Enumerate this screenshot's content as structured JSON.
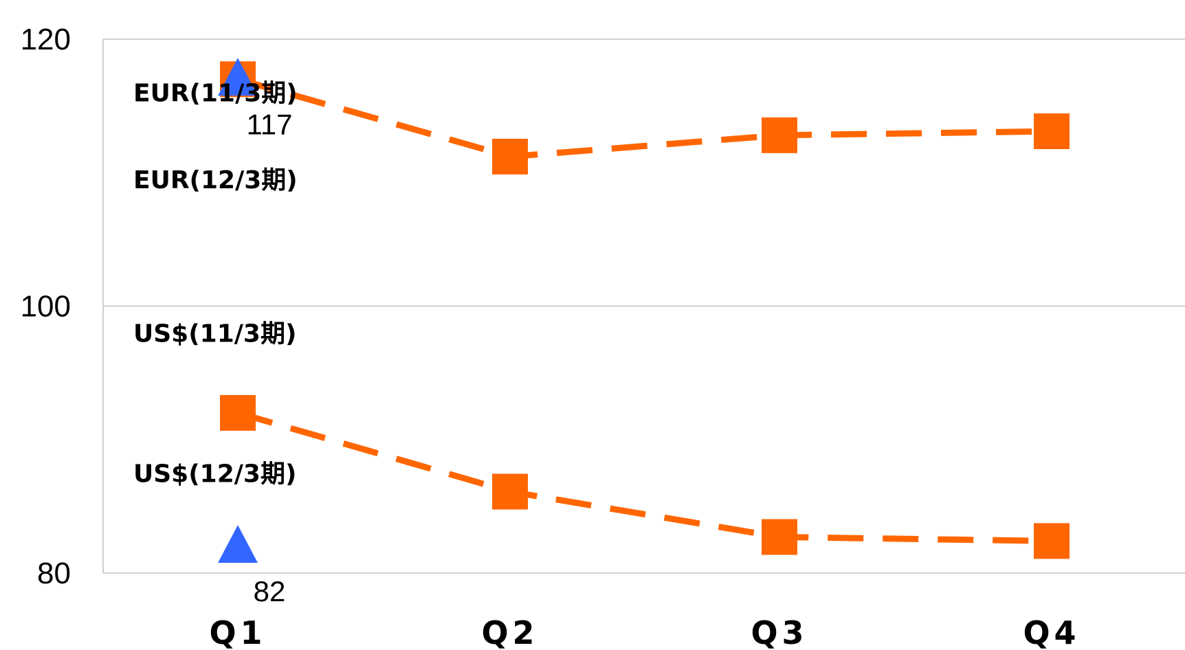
{
  "chart_data": {
    "type": "line",
    "categories": [
      "Q1",
      "Q2",
      "Q3",
      "Q4"
    ],
    "ylim": [
      80,
      120
    ],
    "yticks": [
      "80",
      "100",
      "120"
    ],
    "grid": true,
    "series": [
      {
        "name": "EUR(11/3期)",
        "kind": "line",
        "marker": "square",
        "color": "#ff6600",
        "values": [
          117,
          111.2,
          112.8,
          113.1
        ]
      },
      {
        "name": "EUR(12/3期)",
        "kind": "point",
        "marker": "triangle",
        "color": "#3366ff",
        "values": [
          117,
          null,
          null,
          null
        ],
        "labels": [
          "117",
          "",
          "",
          ""
        ]
      },
      {
        "name": "US$(11/3期)",
        "kind": "line",
        "marker": "square",
        "color": "#ff6600",
        "values": [
          92,
          86.1,
          82.7,
          82.4
        ]
      },
      {
        "name": "US$(12/3期)",
        "kind": "point",
        "marker": "triangle",
        "color": "#3366ff",
        "values": [
          82,
          null,
          null,
          null
        ],
        "labels": [
          "82",
          "",
          "",
          ""
        ]
      }
    ],
    "legend_labels": [
      {
        "text": "EUR(11/3期)",
        "y": 116
      },
      {
        "text": "EUR(12/3期)",
        "y": 109.5
      },
      {
        "text": "US$(11/3期)",
        "y": 98
      },
      {
        "text": "US$(12/3期)",
        "y": 87.5
      }
    ]
  }
}
